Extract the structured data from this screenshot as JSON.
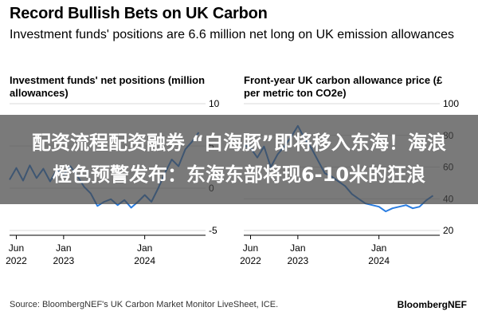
{
  "title": "Record Bullish Bets on UK Carbon",
  "subtitle": "Investment funds' positions are 6.6 million net long on UK emission allowances",
  "banner": {
    "line1": "配资流程配资融券 “白海豚”即将移入东海！海浪",
    "line2": "橙色预警发布：东海东部将现6-10米的狂浪"
  },
  "source": "Source: BloombergNEF's UK Carbon Market Monitor LiveSheet, ICE.",
  "brand": "BloombergNEF",
  "colors": {
    "line": "#2a7de1",
    "axis": "#000000",
    "grid": "#d9d9d9",
    "banner": "#464646"
  },
  "chart_data": [
    {
      "type": "line",
      "title": "Investment funds' net positions (million allowances)",
      "ylim": [
        -5,
        10
      ],
      "yticks": [
        "10",
        "5",
        "0",
        "-5"
      ],
      "xticks": [
        {
          "date": "2022-06",
          "label1": "Jun",
          "label2": "2022"
        },
        {
          "date": "2023-01",
          "label1": "Jan",
          "label2": "2023"
        },
        {
          "date": "2024-01",
          "label1": "Jan",
          "label2": "2024"
        }
      ],
      "xlim": [
        "2022-05",
        "2024-10"
      ],
      "series": [
        {
          "values": [
            [
              "2022-05",
              1.0
            ],
            [
              "2022-06",
              2.4
            ],
            [
              "2022-07",
              0.9
            ],
            [
              "2022-08",
              2.7
            ],
            [
              "2022-09",
              1.2
            ],
            [
              "2022-10",
              2.3
            ],
            [
              "2022-11",
              0.8
            ],
            [
              "2022-12",
              2.2
            ],
            [
              "2023-01",
              1.6
            ],
            [
              "2023-02",
              2.6
            ],
            [
              "2023-03",
              1.5
            ],
            [
              "2023-04",
              0.2
            ],
            [
              "2023-05",
              -0.6
            ],
            [
              "2023-06",
              -2.1
            ],
            [
              "2023-07",
              -1.6
            ],
            [
              "2023-08",
              -1.3
            ],
            [
              "2023-09",
              -2.0
            ],
            [
              "2023-10",
              -1.4
            ],
            [
              "2023-11",
              -2.3
            ],
            [
              "2023-12",
              -1.6
            ],
            [
              "2024-01",
              -0.8
            ],
            [
              "2024-02",
              -1.6
            ],
            [
              "2024-03",
              0.0
            ],
            [
              "2024-04",
              1.8
            ],
            [
              "2024-05",
              3.4
            ],
            [
              "2024-06",
              2.6
            ],
            [
              "2024-07",
              4.6
            ],
            [
              "2024-08",
              5.5
            ],
            [
              "2024-09",
              6.6
            ]
          ]
        }
      ]
    },
    {
      "type": "line",
      "title": "Front-year UK carbon allowance price (£ per metric ton CO2e)",
      "ylim": [
        20,
        100
      ],
      "yticks": [
        "100",
        "80",
        "60",
        "40",
        "20"
      ],
      "xticks": [
        {
          "date": "2022-06",
          "label1": "Jun",
          "label2": "2022"
        },
        {
          "date": "2023-01",
          "label1": "Jan",
          "label2": "2023"
        },
        {
          "date": "2024-01",
          "label1": "Jan",
          "label2": "2024"
        }
      ],
      "xlim": [
        "2022-05",
        "2024-10"
      ],
      "series": [
        {
          "values": [
            [
              "2022-05",
              74
            ],
            [
              "2022-06",
              72
            ],
            [
              "2022-07",
              66
            ],
            [
              "2022-08",
              73
            ],
            [
              "2022-09",
              60
            ],
            [
              "2022-10",
              68
            ],
            [
              "2022-11",
              73
            ],
            [
              "2022-12",
              79
            ],
            [
              "2023-01",
              86
            ],
            [
              "2023-02",
              78
            ],
            [
              "2023-03",
              72
            ],
            [
              "2023-04",
              64
            ],
            [
              "2023-05",
              56
            ],
            [
              "2023-06",
              54
            ],
            [
              "2023-07",
              51
            ],
            [
              "2023-08",
              48
            ],
            [
              "2023-09",
              43
            ],
            [
              "2023-10",
              40
            ],
            [
              "2023-11",
              37
            ],
            [
              "2023-12",
              36
            ],
            [
              "2024-01",
              35
            ],
            [
              "2024-02",
              32
            ],
            [
              "2024-03",
              34
            ],
            [
              "2024-04",
              35
            ],
            [
              "2024-05",
              36
            ],
            [
              "2024-06",
              34
            ],
            [
              "2024-07",
              35
            ],
            [
              "2024-08",
              39
            ],
            [
              "2024-09",
              42
            ]
          ]
        }
      ]
    }
  ]
}
